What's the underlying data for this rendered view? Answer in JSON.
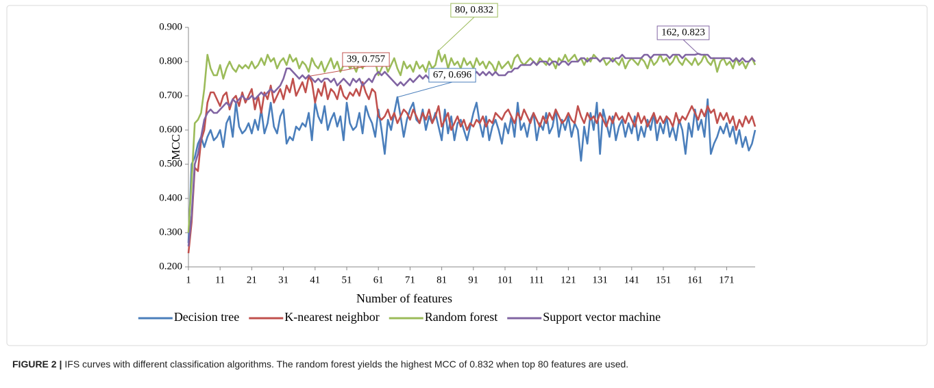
{
  "chart_data": {
    "type": "line",
    "y_axis_label": "MCC",
    "x_axis_label": "Number of features",
    "xlim": [
      1,
      180
    ],
    "ylim": [
      0.2,
      0.9
    ],
    "xticks": [
      1,
      11,
      21,
      31,
      41,
      51,
      61,
      71,
      81,
      91,
      101,
      111,
      121,
      131,
      141,
      151,
      161,
      171
    ],
    "yticks": [
      {
        "value": 0.2,
        "label": "0.200"
      },
      {
        "value": 0.3,
        "label": "0.300"
      },
      {
        "value": 0.4,
        "label": "0.400"
      },
      {
        "value": 0.5,
        "label": "0.500"
      },
      {
        "value": 0.6,
        "label": "0.600"
      },
      {
        "value": 0.7,
        "label": "0.700"
      },
      {
        "value": 0.8,
        "label": "0.800"
      },
      {
        "value": 0.9,
        "label": "0.900"
      }
    ],
    "grid": false,
    "legend": "bottom",
    "x": [
      1,
      2,
      3,
      4,
      5,
      6,
      7,
      8,
      9,
      10,
      11,
      12,
      13,
      14,
      15,
      16,
      17,
      18,
      19,
      20,
      21,
      22,
      23,
      24,
      25,
      26,
      27,
      28,
      29,
      30,
      31,
      32,
      33,
      34,
      35,
      36,
      37,
      38,
      39,
      40,
      41,
      42,
      43,
      44,
      45,
      46,
      47,
      48,
      49,
      50,
      51,
      52,
      53,
      54,
      55,
      56,
      57,
      58,
      59,
      60,
      61,
      62,
      63,
      64,
      65,
      66,
      67,
      68,
      69,
      70,
      71,
      72,
      73,
      74,
      75,
      76,
      77,
      78,
      79,
      80,
      81,
      82,
      83,
      84,
      85,
      86,
      87,
      88,
      89,
      90,
      91,
      92,
      93,
      94,
      95,
      96,
      97,
      98,
      99,
      100,
      101,
      102,
      103,
      104,
      105,
      106,
      107,
      108,
      109,
      110,
      111,
      112,
      113,
      114,
      115,
      116,
      117,
      118,
      119,
      120,
      121,
      122,
      123,
      124,
      125,
      126,
      127,
      128,
      129,
      130,
      131,
      132,
      133,
      134,
      135,
      136,
      137,
      138,
      139,
      140,
      141,
      142,
      143,
      144,
      145,
      146,
      147,
      148,
      149,
      150,
      151,
      152,
      153,
      154,
      155,
      156,
      157,
      158,
      159,
      160,
      161,
      162,
      163,
      164,
      165,
      166,
      167,
      168,
      169,
      170,
      171,
      172,
      173,
      174,
      175,
      176,
      177,
      178,
      179,
      180
    ],
    "series": [
      {
        "name": "Decision tree",
        "color": "#4a7ebb",
        "values": [
          0.27,
          0.5,
          0.52,
          0.56,
          0.58,
          0.55,
          0.58,
          0.6,
          0.57,
          0.58,
          0.6,
          0.55,
          0.62,
          0.64,
          0.58,
          0.68,
          0.61,
          0.59,
          0.6,
          0.62,
          0.59,
          0.63,
          0.6,
          0.66,
          0.59,
          0.62,
          0.68,
          0.61,
          0.59,
          0.64,
          0.66,
          0.56,
          0.58,
          0.57,
          0.61,
          0.6,
          0.62,
          0.61,
          0.65,
          0.57,
          0.68,
          0.64,
          0.62,
          0.67,
          0.6,
          0.63,
          0.65,
          0.61,
          0.64,
          0.57,
          0.68,
          0.62,
          0.6,
          0.61,
          0.65,
          0.59,
          0.67,
          0.64,
          0.62,
          0.58,
          0.66,
          0.6,
          0.53,
          0.63,
          0.6,
          0.65,
          0.696,
          0.64,
          0.58,
          0.63,
          0.66,
          0.68,
          0.63,
          0.62,
          0.66,
          0.6,
          0.64,
          0.62,
          0.65,
          0.61,
          0.57,
          0.66,
          0.59,
          0.64,
          0.57,
          0.62,
          0.63,
          0.6,
          0.57,
          0.61,
          0.65,
          0.68,
          0.62,
          0.58,
          0.64,
          0.57,
          0.61,
          0.63,
          0.6,
          0.56,
          0.62,
          0.59,
          0.64,
          0.58,
          0.68,
          0.6,
          0.62,
          0.58,
          0.63,
          0.65,
          0.57,
          0.62,
          0.6,
          0.65,
          0.59,
          0.61,
          0.66,
          0.58,
          0.63,
          0.6,
          0.64,
          0.58,
          0.62,
          0.6,
          0.51,
          0.61,
          0.56,
          0.65,
          0.6,
          0.68,
          0.53,
          0.66,
          0.62,
          0.58,
          0.64,
          0.57,
          0.61,
          0.63,
          0.58,
          0.62,
          0.59,
          0.64,
          0.57,
          0.61,
          0.58,
          0.63,
          0.6,
          0.65,
          0.57,
          0.62,
          0.59,
          0.64,
          0.58,
          0.61,
          0.57,
          0.63,
          0.6,
          0.53,
          0.62,
          0.58,
          0.66,
          0.6,
          0.63,
          0.58,
          0.69,
          0.53,
          0.56,
          0.58,
          0.61,
          0.59,
          0.62,
          0.58,
          0.61,
          0.56,
          0.6,
          0.55,
          0.58,
          0.54,
          0.56,
          0.6
        ]
      },
      {
        "name": "K-nearest neighbor",
        "color": "#c0504d",
        "values": [
          0.24,
          0.33,
          0.49,
          0.48,
          0.57,
          0.6,
          0.68,
          0.71,
          0.71,
          0.69,
          0.67,
          0.7,
          0.71,
          0.66,
          0.69,
          0.7,
          0.67,
          0.71,
          0.68,
          0.7,
          0.72,
          0.66,
          0.7,
          0.65,
          0.71,
          0.69,
          0.73,
          0.68,
          0.7,
          0.72,
          0.69,
          0.73,
          0.71,
          0.75,
          0.7,
          0.72,
          0.74,
          0.71,
          0.757,
          0.74,
          0.68,
          0.72,
          0.7,
          0.74,
          0.69,
          0.72,
          0.71,
          0.69,
          0.73,
          0.7,
          0.69,
          0.71,
          0.7,
          0.72,
          0.7,
          0.74,
          0.71,
          0.69,
          0.72,
          0.71,
          0.64,
          0.63,
          0.64,
          0.66,
          0.63,
          0.65,
          0.62,
          0.64,
          0.66,
          0.65,
          0.63,
          0.66,
          0.64,
          0.62,
          0.65,
          0.63,
          0.66,
          0.62,
          0.64,
          0.67,
          0.61,
          0.63,
          0.65,
          0.6,
          0.62,
          0.64,
          0.61,
          0.63,
          0.6,
          0.62,
          0.61,
          0.63,
          0.62,
          0.64,
          0.61,
          0.63,
          0.62,
          0.65,
          0.64,
          0.63,
          0.65,
          0.66,
          0.64,
          0.62,
          0.65,
          0.63,
          0.66,
          0.64,
          0.62,
          0.65,
          0.63,
          0.61,
          0.64,
          0.62,
          0.65,
          0.63,
          0.66,
          0.64,
          0.62,
          0.63,
          0.65,
          0.63,
          0.62,
          0.67,
          0.64,
          0.62,
          0.65,
          0.63,
          0.64,
          0.62,
          0.65,
          0.63,
          0.61,
          0.64,
          0.62,
          0.65,
          0.63,
          0.64,
          0.62,
          0.65,
          0.63,
          0.61,
          0.65,
          0.62,
          0.64,
          0.61,
          0.63,
          0.65,
          0.62,
          0.64,
          0.62,
          0.64,
          0.63,
          0.61,
          0.65,
          0.62,
          0.64,
          0.63,
          0.65,
          0.67,
          0.65,
          0.63,
          0.66,
          0.64,
          0.67,
          0.65,
          0.66,
          0.62,
          0.65,
          0.63,
          0.65,
          0.62,
          0.64,
          0.6,
          0.63,
          0.61,
          0.64,
          0.62,
          0.64,
          0.61
        ]
      },
      {
        "name": "Random forest",
        "color": "#9bbb59",
        "values": [
          0.3,
          0.45,
          0.62,
          0.63,
          0.65,
          0.72,
          0.82,
          0.78,
          0.76,
          0.76,
          0.79,
          0.75,
          0.78,
          0.8,
          0.78,
          0.77,
          0.79,
          0.78,
          0.79,
          0.78,
          0.8,
          0.78,
          0.79,
          0.81,
          0.79,
          0.82,
          0.8,
          0.81,
          0.78,
          0.8,
          0.81,
          0.79,
          0.82,
          0.8,
          0.81,
          0.78,
          0.8,
          0.79,
          0.77,
          0.81,
          0.79,
          0.78,
          0.8,
          0.77,
          0.79,
          0.81,
          0.78,
          0.8,
          0.77,
          0.79,
          0.8,
          0.78,
          0.79,
          0.77,
          0.8,
          0.78,
          0.81,
          0.79,
          0.82,
          0.8,
          0.76,
          0.78,
          0.8,
          0.77,
          0.79,
          0.81,
          0.78,
          0.76,
          0.8,
          0.78,
          0.79,
          0.77,
          0.8,
          0.78,
          0.79,
          0.77,
          0.8,
          0.78,
          0.79,
          0.832,
          0.8,
          0.82,
          0.78,
          0.81,
          0.79,
          0.8,
          0.78,
          0.81,
          0.79,
          0.8,
          0.78,
          0.81,
          0.79,
          0.8,
          0.78,
          0.8,
          0.79,
          0.77,
          0.8,
          0.78,
          0.79,
          0.8,
          0.78,
          0.81,
          0.82,
          0.8,
          0.79,
          0.8,
          0.81,
          0.8,
          0.79,
          0.81,
          0.8,
          0.79,
          0.81,
          0.8,
          0.78,
          0.81,
          0.8,
          0.82,
          0.8,
          0.81,
          0.82,
          0.8,
          0.81,
          0.79,
          0.81,
          0.8,
          0.82,
          0.81,
          0.8,
          0.81,
          0.79,
          0.8,
          0.81,
          0.8,
          0.79,
          0.81,
          0.78,
          0.8,
          0.81,
          0.8,
          0.79,
          0.81,
          0.8,
          0.78,
          0.81,
          0.79,
          0.8,
          0.82,
          0.8,
          0.81,
          0.79,
          0.8,
          0.82,
          0.8,
          0.79,
          0.81,
          0.8,
          0.79,
          0.81,
          0.79,
          0.8,
          0.82,
          0.8,
          0.79,
          0.81,
          0.77,
          0.8,
          0.81,
          0.79,
          0.8,
          0.78,
          0.81,
          0.79,
          0.8,
          0.78,
          0.8,
          0.81,
          0.79
        ]
      },
      {
        "name": "Support vector machine",
        "color": "#8064a2",
        "values": [
          0.26,
          0.35,
          0.5,
          0.53,
          0.58,
          0.63,
          0.65,
          0.66,
          0.65,
          0.65,
          0.66,
          0.67,
          0.68,
          0.67,
          0.69,
          0.68,
          0.69,
          0.7,
          0.69,
          0.69,
          0.7,
          0.69,
          0.7,
          0.71,
          0.7,
          0.71,
          0.72,
          0.71,
          0.72,
          0.73,
          0.75,
          0.78,
          0.78,
          0.77,
          0.76,
          0.75,
          0.76,
          0.75,
          0.76,
          0.75,
          0.74,
          0.75,
          0.74,
          0.75,
          0.75,
          0.74,
          0.75,
          0.73,
          0.74,
          0.75,
          0.74,
          0.73,
          0.75,
          0.74,
          0.75,
          0.73,
          0.74,
          0.75,
          0.74,
          0.76,
          0.77,
          0.76,
          0.77,
          0.76,
          0.75,
          0.74,
          0.73,
          0.74,
          0.73,
          0.74,
          0.75,
          0.74,
          0.75,
          0.76,
          0.75,
          0.76,
          0.75,
          0.76,
          0.75,
          0.76,
          0.77,
          0.76,
          0.75,
          0.76,
          0.75,
          0.76,
          0.75,
          0.76,
          0.77,
          0.76,
          0.76,
          0.77,
          0.76,
          0.77,
          0.76,
          0.77,
          0.76,
          0.77,
          0.76,
          0.76,
          0.76,
          0.77,
          0.77,
          0.78,
          0.78,
          0.79,
          0.79,
          0.79,
          0.79,
          0.8,
          0.79,
          0.8,
          0.8,
          0.8,
          0.79,
          0.8,
          0.8,
          0.79,
          0.8,
          0.8,
          0.79,
          0.8,
          0.8,
          0.8,
          0.81,
          0.81,
          0.8,
          0.81,
          0.81,
          0.81,
          0.8,
          0.81,
          0.81,
          0.81,
          0.8,
          0.81,
          0.81,
          0.82,
          0.81,
          0.81,
          0.81,
          0.81,
          0.81,
          0.81,
          0.82,
          0.82,
          0.81,
          0.82,
          0.82,
          0.82,
          0.82,
          0.82,
          0.81,
          0.82,
          0.82,
          0.82,
          0.81,
          0.82,
          0.82,
          0.82,
          0.82,
          0.823,
          0.82,
          0.82,
          0.82,
          0.81,
          0.81,
          0.81,
          0.81,
          0.81,
          0.81,
          0.81,
          0.8,
          0.81,
          0.8,
          0.81,
          0.8,
          0.8,
          0.81,
          0.8
        ]
      }
    ],
    "annotations": [
      {
        "text": "39, 0.757",
        "x": 39,
        "y": 0.757,
        "color": "#c0504d"
      },
      {
        "text": "80, 0.832",
        "x": 80,
        "y": 0.832,
        "color": "#9bbb59"
      },
      {
        "text": "67, 0.696",
        "x": 67,
        "y": 0.696,
        "color": "#4a7ebb"
      },
      {
        "text": "162, 0.823",
        "x": 162,
        "y": 0.823,
        "color": "#8064a2"
      }
    ]
  },
  "caption": {
    "label": "FIGURE 2 |",
    "text": "IFS curves with different classification algorithms. The random forest yields the highest MCC of 0.832 when top 80 features are used."
  }
}
